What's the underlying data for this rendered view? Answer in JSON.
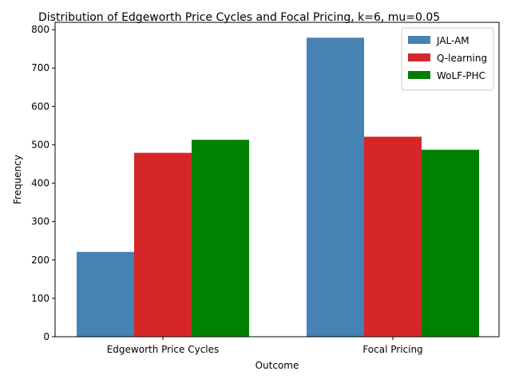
{
  "chart_data": {
    "type": "bar",
    "title": "Distribution of Edgeworth Price Cycles and Focal Pricing, k=6, mu=0.05",
    "xlabel": "Outcome",
    "ylabel": "Frequency",
    "categories": [
      "Edgeworth Price Cycles",
      "Focal Pricing"
    ],
    "series": [
      {
        "name": "JAL-AM",
        "color": "#4682b4",
        "values": [
          221,
          779
        ]
      },
      {
        "name": "Q-learning",
        "color": "#d62728",
        "values": [
          479,
          521
        ]
      },
      {
        "name": "WoLF-PHC",
        "color": "#008000",
        "values": [
          513,
          487
        ]
      }
    ],
    "ylim": [
      0,
      819
    ],
    "yticks": [
      0,
      100,
      200,
      300,
      400,
      500,
      600,
      700,
      800
    ],
    "legend_position": "top-right",
    "grid": false
  }
}
